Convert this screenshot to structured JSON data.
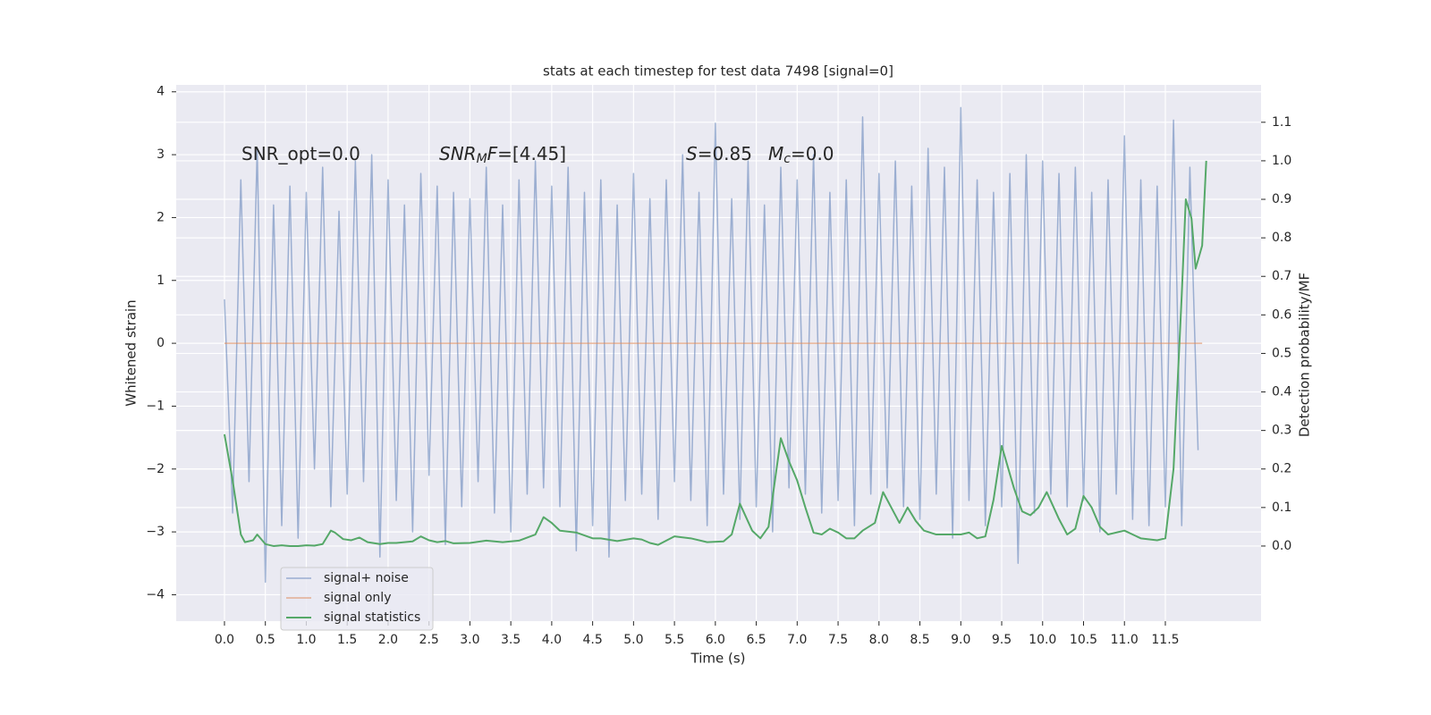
{
  "chart_data": {
    "type": "line",
    "title": "stats at each timestep for test data 7498 [signal=0]",
    "xlabel": "Time (s)",
    "ylabel": "Whitened strain",
    "y2label": "Detection probability/MF",
    "xlim": [
      -0.59,
      12.67
    ],
    "ylim": [
      -4.42,
      4.11
    ],
    "y2lim": [
      -0.195,
      1.197
    ],
    "xticks": [
      {
        "value": 0.0,
        "label": "0.0"
      },
      {
        "value": 0.5,
        "label": "0.5"
      },
      {
        "value": 1.0,
        "label": "1.0"
      },
      {
        "value": 1.5,
        "label": "1.5"
      },
      {
        "value": 2.0,
        "label": "2.0"
      },
      {
        "value": 2.5,
        "label": "2.5"
      },
      {
        "value": 3.0,
        "label": "3.0"
      },
      {
        "value": 3.5,
        "label": "3.5"
      },
      {
        "value": 4.0,
        "label": "4.0"
      },
      {
        "value": 4.5,
        "label": "4.5"
      },
      {
        "value": 5.0,
        "label": "5.0"
      },
      {
        "value": 5.5,
        "label": "5.5"
      },
      {
        "value": 6.0,
        "label": "6.0"
      },
      {
        "value": 6.5,
        "label": "6.5"
      },
      {
        "value": 7.0,
        "label": "7.0"
      },
      {
        "value": 7.5,
        "label": "7.5"
      },
      {
        "value": 8.0,
        "label": "8.0"
      },
      {
        "value": 8.5,
        "label": "8.5"
      },
      {
        "value": 9.0,
        "label": "9.0"
      },
      {
        "value": 9.5,
        "label": "9.5"
      },
      {
        "value": 10.0,
        "label": "10.0"
      },
      {
        "value": 10.5,
        "label": "10.5"
      },
      {
        "value": 11.0,
        "label": "11.0"
      },
      {
        "value": 11.5,
        "label": "11.5"
      }
    ],
    "yticks": [
      {
        "value": -4,
        "label": "−4"
      },
      {
        "value": -3,
        "label": "−3"
      },
      {
        "value": -2,
        "label": "−2"
      },
      {
        "value": -1,
        "label": "−1"
      },
      0,
      1,
      2,
      3,
      4
    ],
    "y2ticks": [
      {
        "value": 0.0,
        "label": "0.0"
      },
      {
        "value": 0.1,
        "label": "0.1"
      },
      {
        "value": 0.2,
        "label": "0.2"
      },
      {
        "value": 0.3,
        "label": "0.3"
      },
      {
        "value": 0.4,
        "label": "0.4"
      },
      {
        "value": 0.5,
        "label": "0.5"
      },
      {
        "value": 0.6,
        "label": "0.6"
      },
      {
        "value": 0.7,
        "label": "0.7"
      },
      {
        "value": 0.8,
        "label": "0.8"
      },
      {
        "value": 0.9,
        "label": "0.9"
      },
      {
        "value": 1.0,
        "label": "1.0"
      },
      {
        "value": 1.1,
        "label": "1.1"
      }
    ],
    "grid": true,
    "legend": "lower left",
    "annotations": [
      [
        {
          "text": "SNR_opt=0.0",
          "style": "normal"
        }
      ],
      [
        {
          "text": "SNR",
          "style": "italic"
        },
        {
          "text": "M",
          "style": "italic-sub"
        },
        {
          "text": "F",
          "style": "italic"
        },
        {
          "text": "=[4.45]",
          "style": "normal"
        }
      ],
      [
        {
          "text": "S",
          "style": "italic"
        },
        {
          "text": "=0.85",
          "style": "normal"
        }
      ],
      [
        {
          "text": "M",
          "style": "italic"
        },
        {
          "text": "c",
          "style": "italic-sub"
        },
        {
          "text": "=0.0",
          "style": "normal"
        }
      ]
    ],
    "series": [
      {
        "name": "signal+ noise",
        "color": "#4c72b0",
        "opacity": 0.5,
        "axis": "y",
        "x": [
          0.0,
          0.1,
          0.2,
          0.3,
          0.4,
          0.5,
          0.6,
          0.7,
          0.8,
          0.9,
          1.0,
          1.1,
          1.2,
          1.3,
          1.4,
          1.5,
          1.6,
          1.7,
          1.8,
          1.9,
          2.0,
          2.1,
          2.2,
          2.3,
          2.4,
          2.5,
          2.6,
          2.7,
          2.8,
          2.9,
          3.0,
          3.1,
          3.2,
          3.3,
          3.4,
          3.5,
          3.6,
          3.7,
          3.8,
          3.9,
          4.0,
          4.1,
          4.2,
          4.3,
          4.4,
          4.5,
          4.6,
          4.7,
          4.8,
          4.9,
          5.0,
          5.1,
          5.2,
          5.3,
          5.4,
          5.5,
          5.6,
          5.7,
          5.8,
          5.9,
          6.0,
          6.1,
          6.2,
          6.3,
          6.4,
          6.5,
          6.6,
          6.7,
          6.8,
          6.9,
          7.0,
          7.1,
          7.2,
          7.3,
          7.4,
          7.5,
          7.6,
          7.7,
          7.8,
          7.9,
          8.0,
          8.1,
          8.2,
          8.3,
          8.4,
          8.5,
          8.6,
          8.7,
          8.8,
          8.9,
          9.0,
          9.1,
          9.2,
          9.3,
          9.4,
          9.5,
          9.6,
          9.7,
          9.8,
          9.9,
          10.0,
          10.1,
          10.2,
          10.3,
          10.4,
          10.5,
          10.6,
          10.7,
          10.8,
          10.9,
          11.0,
          11.1,
          11.2,
          11.3,
          11.4,
          11.5,
          11.6,
          11.7,
          11.8,
          11.9
        ],
        "values": [
          0.7,
          -2.7,
          2.6,
          -2.2,
          3.1,
          -3.8,
          2.2,
          -2.9,
          2.5,
          -3.1,
          2.4,
          -2.0,
          2.8,
          -2.6,
          2.1,
          -2.4,
          2.9,
          -2.2,
          3.0,
          -3.4,
          2.6,
          -2.5,
          2.2,
          -3.0,
          2.7,
          -2.1,
          2.5,
          -3.2,
          2.4,
          -2.6,
          2.3,
          -2.2,
          2.8,
          -2.7,
          2.2,
          -3.0,
          2.6,
          -2.4,
          2.9,
          -2.3,
          2.5,
          -2.6,
          2.8,
          -3.3,
          2.4,
          -2.9,
          2.6,
          -3.4,
          2.2,
          -2.5,
          2.7,
          -2.4,
          2.3,
          -2.8,
          2.6,
          -2.2,
          3.0,
          -2.5,
          2.4,
          -2.9,
          3.5,
          -2.4,
          2.3,
          -2.8,
          2.9,
          -2.6,
          2.2,
          -3.0,
          2.8,
          -2.3,
          2.6,
          -2.4,
          3.0,
          -2.7,
          2.4,
          -2.5,
          2.6,
          -2.9,
          3.6,
          -2.4,
          2.7,
          -2.3,
          2.9,
          -2.6,
          2.5,
          -2.8,
          3.1,
          -2.4,
          2.8,
          -3.1,
          3.75,
          -2.5,
          2.6,
          -2.9,
          2.4,
          -2.6,
          2.7,
          -3.5,
          3.0,
          -2.7,
          2.9,
          -2.4,
          2.7,
          -2.6,
          2.8,
          -2.5,
          2.4,
          -3.0,
          2.6,
          -2.4,
          3.3,
          -2.8,
          2.6,
          -2.9,
          2.5,
          -2.6,
          3.55,
          -2.9,
          2.8,
          -1.7
        ]
      },
      {
        "name": "signal only",
        "color": "#dd8452",
        "opacity": 0.6,
        "axis": "y",
        "x": [
          0.0,
          11.95
        ],
        "values": [
          0,
          0
        ]
      },
      {
        "name": "signal statistics",
        "color": "#55a868",
        "opacity": 1,
        "axis": "y2",
        "x": [
          0.0,
          0.1,
          0.2,
          0.25,
          0.35,
          0.4,
          0.5,
          0.6,
          0.7,
          0.8,
          0.9,
          1.0,
          1.1,
          1.2,
          1.3,
          1.35,
          1.45,
          1.55,
          1.65,
          1.75,
          1.9,
          2.0,
          2.1,
          2.3,
          2.4,
          2.5,
          2.6,
          2.7,
          2.8,
          3.0,
          3.2,
          3.4,
          3.6,
          3.8,
          3.9,
          4.0,
          4.1,
          4.3,
          4.5,
          4.6,
          4.8,
          5.0,
          5.1,
          5.2,
          5.3,
          5.5,
          5.7,
          5.9,
          6.1,
          6.2,
          6.3,
          6.45,
          6.55,
          6.65,
          6.8,
          6.9,
          7.0,
          7.1,
          7.2,
          7.3,
          7.4,
          7.5,
          7.6,
          7.7,
          7.8,
          7.95,
          8.05,
          8.15,
          8.25,
          8.35,
          8.45,
          8.55,
          8.7,
          8.9,
          9.0,
          9.1,
          9.2,
          9.3,
          9.4,
          9.5,
          9.65,
          9.75,
          9.85,
          9.95,
          10.05,
          10.2,
          10.3,
          10.4,
          10.5,
          10.6,
          10.7,
          10.8,
          11.0,
          11.2,
          11.4,
          11.5,
          11.6,
          11.7,
          11.75,
          11.82,
          11.87,
          11.95,
          12.0
        ],
        "values": [
          0.29,
          0.17,
          0.03,
          0.01,
          0.015,
          0.03,
          0.005,
          0.0,
          0.002,
          0.0,
          0.0,
          0.002,
          0.001,
          0.005,
          0.04,
          0.035,
          0.018,
          0.015,
          0.022,
          0.01,
          0.005,
          0.008,
          0.008,
          0.012,
          0.025,
          0.015,
          0.01,
          0.013,
          0.007,
          0.008,
          0.014,
          0.01,
          0.014,
          0.03,
          0.075,
          0.06,
          0.04,
          0.035,
          0.02,
          0.02,
          0.013,
          0.02,
          0.017,
          0.008,
          0.003,
          0.025,
          0.02,
          0.01,
          0.012,
          0.03,
          0.11,
          0.04,
          0.02,
          0.05,
          0.28,
          0.22,
          0.17,
          0.1,
          0.035,
          0.03,
          0.045,
          0.035,
          0.02,
          0.02,
          0.04,
          0.06,
          0.14,
          0.1,
          0.06,
          0.1,
          0.065,
          0.04,
          0.03,
          0.03,
          0.03,
          0.035,
          0.02,
          0.025,
          0.12,
          0.26,
          0.15,
          0.09,
          0.08,
          0.1,
          0.14,
          0.07,
          0.03,
          0.045,
          0.13,
          0.1,
          0.05,
          0.03,
          0.04,
          0.02,
          0.015,
          0.02,
          0.2,
          0.65,
          0.9,
          0.85,
          0.72,
          0.78,
          1.0
        ]
      }
    ]
  }
}
